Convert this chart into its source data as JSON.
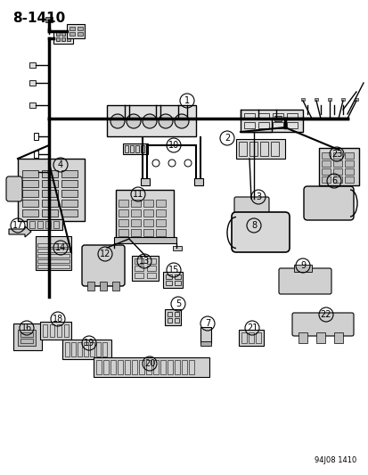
{
  "title": "8-1410",
  "subtitle": "94J08 1410",
  "background_color": "#ffffff",
  "line_color": "#000000",
  "component_color": "#cccccc",
  "text_color": "#000000",
  "fig_width": 4.14,
  "fig_height": 5.33,
  "dpi": 100
}
